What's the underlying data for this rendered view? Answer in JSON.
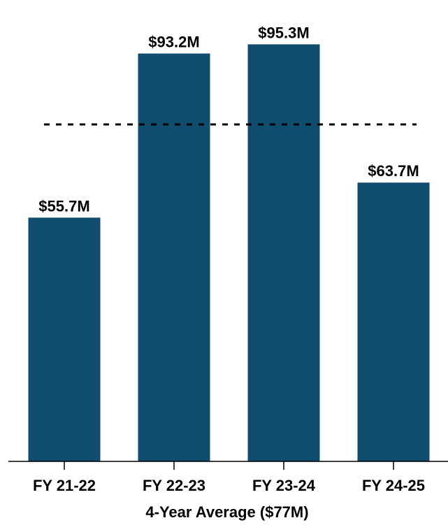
{
  "chart_data": {
    "type": "bar",
    "categories": [
      "FY 21-22",
      "FY 22-23",
      "FY 23-24",
      "FY 24-25"
    ],
    "values": [
      55.7,
      93.2,
      95.3,
      63.7
    ],
    "data_labels": [
      "$55.7M",
      "$93.2M",
      "$95.3M",
      "$63.7M"
    ],
    "reference_line": {
      "value": 77,
      "style": "dashed"
    },
    "xlabel": "4-Year Average ($77M)",
    "ylabel": "",
    "ylim": [
      0,
      100
    ],
    "grid": false,
    "legend": "none",
    "colors": {
      "bar": "#0f4c6e",
      "axis": "#000000",
      "reference_line": "#000000"
    }
  }
}
